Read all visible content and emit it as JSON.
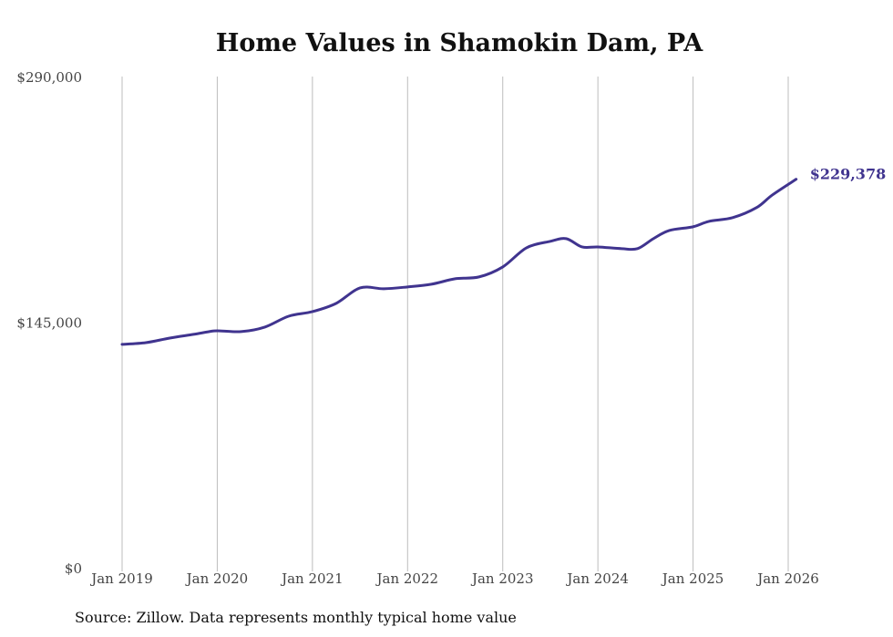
{
  "chart_data": {
    "type": "line",
    "title": "Home Values in Shamokin Dam, PA",
    "xlabel": "",
    "ylabel": "",
    "ylim": [
      0,
      290000
    ],
    "y_ticks": [
      {
        "value": 0,
        "label": "$0"
      },
      {
        "value": 145000,
        "label": "$145,000"
      },
      {
        "value": 290000,
        "label": "$290,000"
      }
    ],
    "x_ticks": [
      {
        "value": "2019-01",
        "label": "Jan 2019"
      },
      {
        "value": "2020-01",
        "label": "Jan 2020"
      },
      {
        "value": "2021-01",
        "label": "Jan 2021"
      },
      {
        "value": "2022-01",
        "label": "Jan 2022"
      },
      {
        "value": "2023-01",
        "label": "Jan 2023"
      },
      {
        "value": "2024-01",
        "label": "Jan 2024"
      },
      {
        "value": "2025-01",
        "label": "Jan 2025"
      },
      {
        "value": "2026-01",
        "label": "Jan 2026"
      }
    ],
    "grid": "vertical",
    "series": [
      {
        "name": "Typical home value",
        "color": "#40348f",
        "x": [
          "2019-01",
          "2019-04",
          "2019-07",
          "2019-10",
          "2019-12",
          "2020-01",
          "2020-04",
          "2020-07",
          "2020-10",
          "2021-01",
          "2021-04",
          "2021-07",
          "2021-10",
          "2022-01",
          "2022-04",
          "2022-07",
          "2022-10",
          "2023-01",
          "2023-04",
          "2023-07",
          "2023-09",
          "2023-11",
          "2024-01",
          "2024-04",
          "2024-06",
          "2024-08",
          "2024-10",
          "2025-01",
          "2025-03",
          "2025-06",
          "2025-09",
          "2025-11",
          "2026-02"
        ],
        "values": [
          131900,
          132900,
          135600,
          137800,
          139400,
          139900,
          139400,
          142100,
          148500,
          151200,
          156100,
          165200,
          164700,
          165800,
          167400,
          170600,
          171700,
          177600,
          188900,
          192700,
          194300,
          189400,
          189400,
          188400,
          188400,
          194300,
          199100,
          201300,
          204500,
          206700,
          212600,
          220100,
          229378
        ]
      }
    ],
    "end_label": "$229,378"
  },
  "source": "Source: Zillow. Data represents monthly typical home value"
}
